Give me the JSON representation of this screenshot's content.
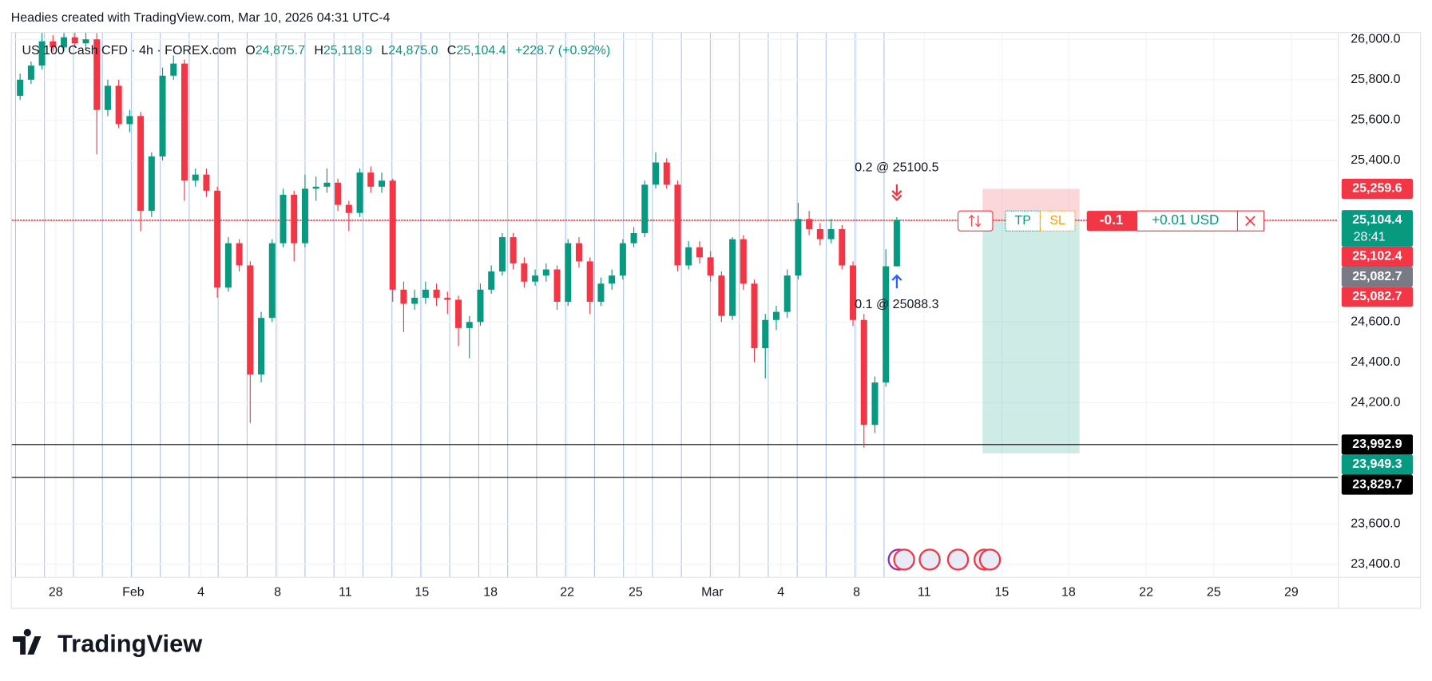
{
  "header": "Headies created with TradingView.com, Mar 10, 2026 04:31 UTC-4",
  "footer": {
    "logo": "TradingView"
  },
  "chart_data": {
    "type": "candlestick",
    "symbol": "US 100 Cash CFD · 4h · FOREX.com",
    "ohlc_legend": [
      {
        "key": "O",
        "value": "24,875.7"
      },
      {
        "key": "H",
        "value": "25,118.9"
      },
      {
        "key": "L",
        "value": "24,875.0"
      },
      {
        "key": "C",
        "value": "25,104.4"
      }
    ],
    "change": "+228.7 (+0.92%)",
    "up_color": "#089981",
    "down_color": "#f23645",
    "candles": [
      [
        25720,
        25830,
        25700,
        25800
      ],
      [
        25800,
        25890,
        25780,
        25870
      ],
      [
        25870,
        26032,
        25850,
        25990
      ],
      [
        25990,
        26020,
        25940,
        25960
      ],
      [
        25960,
        26032,
        25940,
        26010
      ],
      [
        26010,
        26032,
        25960,
        25980
      ],
      [
        25980,
        26032,
        25950,
        26000
      ],
      [
        26000,
        26030,
        25430,
        25650
      ],
      [
        25650,
        25800,
        25620,
        25770
      ],
      [
        25770,
        25800,
        25560,
        25580
      ],
      [
        25580,
        25650,
        25540,
        25620
      ],
      [
        25620,
        25640,
        25050,
        25150
      ],
      [
        25150,
        25440,
        25120,
        25420
      ],
      [
        25420,
        25860,
        25400,
        25820
      ],
      [
        25820,
        25920,
        25800,
        25880
      ],
      [
        25880,
        25900,
        25200,
        25300
      ],
      [
        25300,
        25360,
        25270,
        25330
      ],
      [
        25330,
        25360,
        25220,
        25250
      ],
      [
        25250,
        25270,
        24720,
        24770
      ],
      [
        24770,
        25020,
        24750,
        24990
      ],
      [
        24990,
        25010,
        24850,
        24880
      ],
      [
        24880,
        24900,
        24100,
        24340
      ],
      [
        24340,
        24650,
        24300,
        24620
      ],
      [
        24620,
        25010,
        24600,
        24990
      ],
      [
        24990,
        25260,
        24970,
        25230
      ],
      [
        25230,
        25250,
        24900,
        24990
      ],
      [
        24990,
        25330,
        24970,
        25260
      ],
      [
        25260,
        25320,
        25200,
        25270
      ],
      [
        25270,
        25360,
        25240,
        25290
      ],
      [
        25290,
        25310,
        25150,
        25180
      ],
      [
        25180,
        25200,
        25050,
        25140
      ],
      [
        25140,
        25360,
        25120,
        25340
      ],
      [
        25340,
        25370,
        25240,
        25270
      ],
      [
        25270,
        25340,
        25240,
        25300
      ],
      [
        25300,
        25310,
        24700,
        24760
      ],
      [
        24760,
        24800,
        24550,
        24690
      ],
      [
        24690,
        24760,
        24660,
        24720
      ],
      [
        24720,
        24800,
        24690,
        24760
      ],
      [
        24760,
        24790,
        24680,
        24720
      ],
      [
        24720,
        24750,
        24640,
        24710
      ],
      [
        24710,
        24730,
        24480,
        24570
      ],
      [
        24570,
        24630,
        24420,
        24600
      ],
      [
        24600,
        24790,
        24580,
        24760
      ],
      [
        24760,
        24880,
        24740,
        24850
      ],
      [
        24850,
        25040,
        24830,
        25020
      ],
      [
        25020,
        25040,
        24860,
        24890
      ],
      [
        24890,
        24920,
        24770,
        24800
      ],
      [
        24800,
        24860,
        24780,
        24830
      ],
      [
        24830,
        24890,
        24800,
        24860
      ],
      [
        24860,
        24880,
        24660,
        24700
      ],
      [
        24700,
        25010,
        24680,
        24990
      ],
      [
        24990,
        25020,
        24870,
        24900
      ],
      [
        24900,
        24920,
        24640,
        24700
      ],
      [
        24700,
        24820,
        24680,
        24790
      ],
      [
        24790,
        24860,
        24760,
        24830
      ],
      [
        24830,
        25010,
        24810,
        24990
      ],
      [
        24990,
        25070,
        24970,
        25040
      ],
      [
        25040,
        25300,
        25020,
        25280
      ],
      [
        25280,
        25440,
        25260,
        25390
      ],
      [
        25390,
        25410,
        25260,
        25280
      ],
      [
        25280,
        25300,
        24850,
        24880
      ],
      [
        24880,
        25000,
        24860,
        24970
      ],
      [
        24970,
        25000,
        24890,
        24920
      ],
      [
        24920,
        24950,
        24800,
        24830
      ],
      [
        24830,
        24850,
        24600,
        24630
      ],
      [
        24630,
        25020,
        24610,
        25010
      ],
      [
        25010,
        25030,
        24760,
        24790
      ],
      [
        24790,
        24810,
        24400,
        24470
      ],
      [
        24470,
        24640,
        24320,
        24610
      ],
      [
        24610,
        24680,
        24560,
        24650
      ],
      [
        24650,
        24860,
        24620,
        24830
      ],
      [
        24830,
        25190,
        24810,
        25110
      ],
      [
        25110,
        25150,
        25030,
        25060
      ],
      [
        25060,
        25090,
        24980,
        25010
      ],
      [
        25010,
        25110,
        24990,
        25060
      ],
      [
        25060,
        25080,
        24860,
        24880
      ],
      [
        24880,
        24900,
        24580,
        24610
      ],
      [
        24610,
        24640,
        23977,
        24090
      ],
      [
        24090,
        24330,
        24050,
        24300
      ],
      [
        24300,
        24960,
        24280,
        24875.7
      ],
      [
        24875.7,
        25118.9,
        24875.0,
        25104.4
      ]
    ],
    "xlim": [
      -0.75,
      120.25
    ],
    "xticks": [
      {
        "value": 3.25,
        "label": "28"
      },
      {
        "value": 10.33,
        "label": "Feb"
      },
      {
        "value": 16.5,
        "label": "4"
      },
      {
        "value": 23.5,
        "label": "8"
      },
      {
        "value": 29.67,
        "label": "11"
      },
      {
        "value": 36.67,
        "label": "15"
      },
      {
        "value": 42.92,
        "label": "18"
      },
      {
        "value": 49.92,
        "label": "22"
      },
      {
        "value": 56.17,
        "label": "25"
      },
      {
        "value": 63.17,
        "label": "Mar"
      },
      {
        "value": 69.42,
        "label": "4"
      },
      {
        "value": 76.33,
        "label": "8"
      },
      {
        "value": 82.5,
        "label": "11"
      },
      {
        "value": 89.58,
        "label": "15"
      },
      {
        "value": 95.67,
        "label": "18"
      },
      {
        "value": 102.75,
        "label": "22"
      },
      {
        "value": 108.92,
        "label": "25"
      },
      {
        "value": 116.0,
        "label": "29"
      }
    ],
    "ylim": [
      23337,
      26032
    ],
    "yticks": [
      {
        "value": 26000,
        "label": "26,000.0"
      },
      {
        "value": 25800,
        "label": "25,800.0"
      },
      {
        "value": 25600,
        "label": "25,600.0"
      },
      {
        "value": 25400,
        "label": "25,400.0"
      },
      {
        "value": 24600,
        "label": "24,600.0"
      },
      {
        "value": 24400,
        "label": "24,400.0"
      },
      {
        "value": 24200,
        "label": "24,200.0"
      },
      {
        "value": 23600,
        "label": "23,600.0"
      },
      {
        "value": 23400,
        "label": "23,400.0"
      }
    ],
    "grid": true,
    "price_labels": [
      {
        "value": 25259.6,
        "label": "25,259.6",
        "color": "#f23645",
        "line": false
      },
      {
        "value": 25104.4,
        "label": "25,104.4",
        "color": "#089981",
        "countdown": "28:41",
        "line": true,
        "line_color": "#f23645"
      },
      {
        "value": 25102.4,
        "label": "25,102.4",
        "color": "#f23645",
        "line": true,
        "line_color": "#f23645"
      },
      {
        "value": 25082.7,
        "label": "25,082.7",
        "color": "#787b86",
        "line": false
      },
      {
        "value": 25082.7,
        "label": "25,082.7",
        "color": "#f23645",
        "line": false
      },
      {
        "value": 23992.9,
        "label": "23,992.9",
        "color": "#000000",
        "line": true,
        "line_color": "#000000"
      },
      {
        "value": 23949.3,
        "label": "23,949.3",
        "color": "#089981",
        "line": false
      },
      {
        "value": 23829.7,
        "label": "23,829.7",
        "color": "#000000",
        "line": true,
        "line_color": "#000000"
      }
    ],
    "position": {
      "stop": 25259.6,
      "entry": 25100.5,
      "target": 23949.3,
      "x_range": [
        87.83,
        96.67
      ],
      "tp_label": "TP",
      "sl_label": "SL",
      "quantity": "-0.1",
      "pnl": "+0.01 USD"
    },
    "trades": [
      {
        "label": "0.2 @ 25100.5",
        "side": "sell",
        "x": 80
      },
      {
        "label": "0.1 @ 25088.3",
        "side": "buy",
        "x": 80
      }
    ]
  }
}
